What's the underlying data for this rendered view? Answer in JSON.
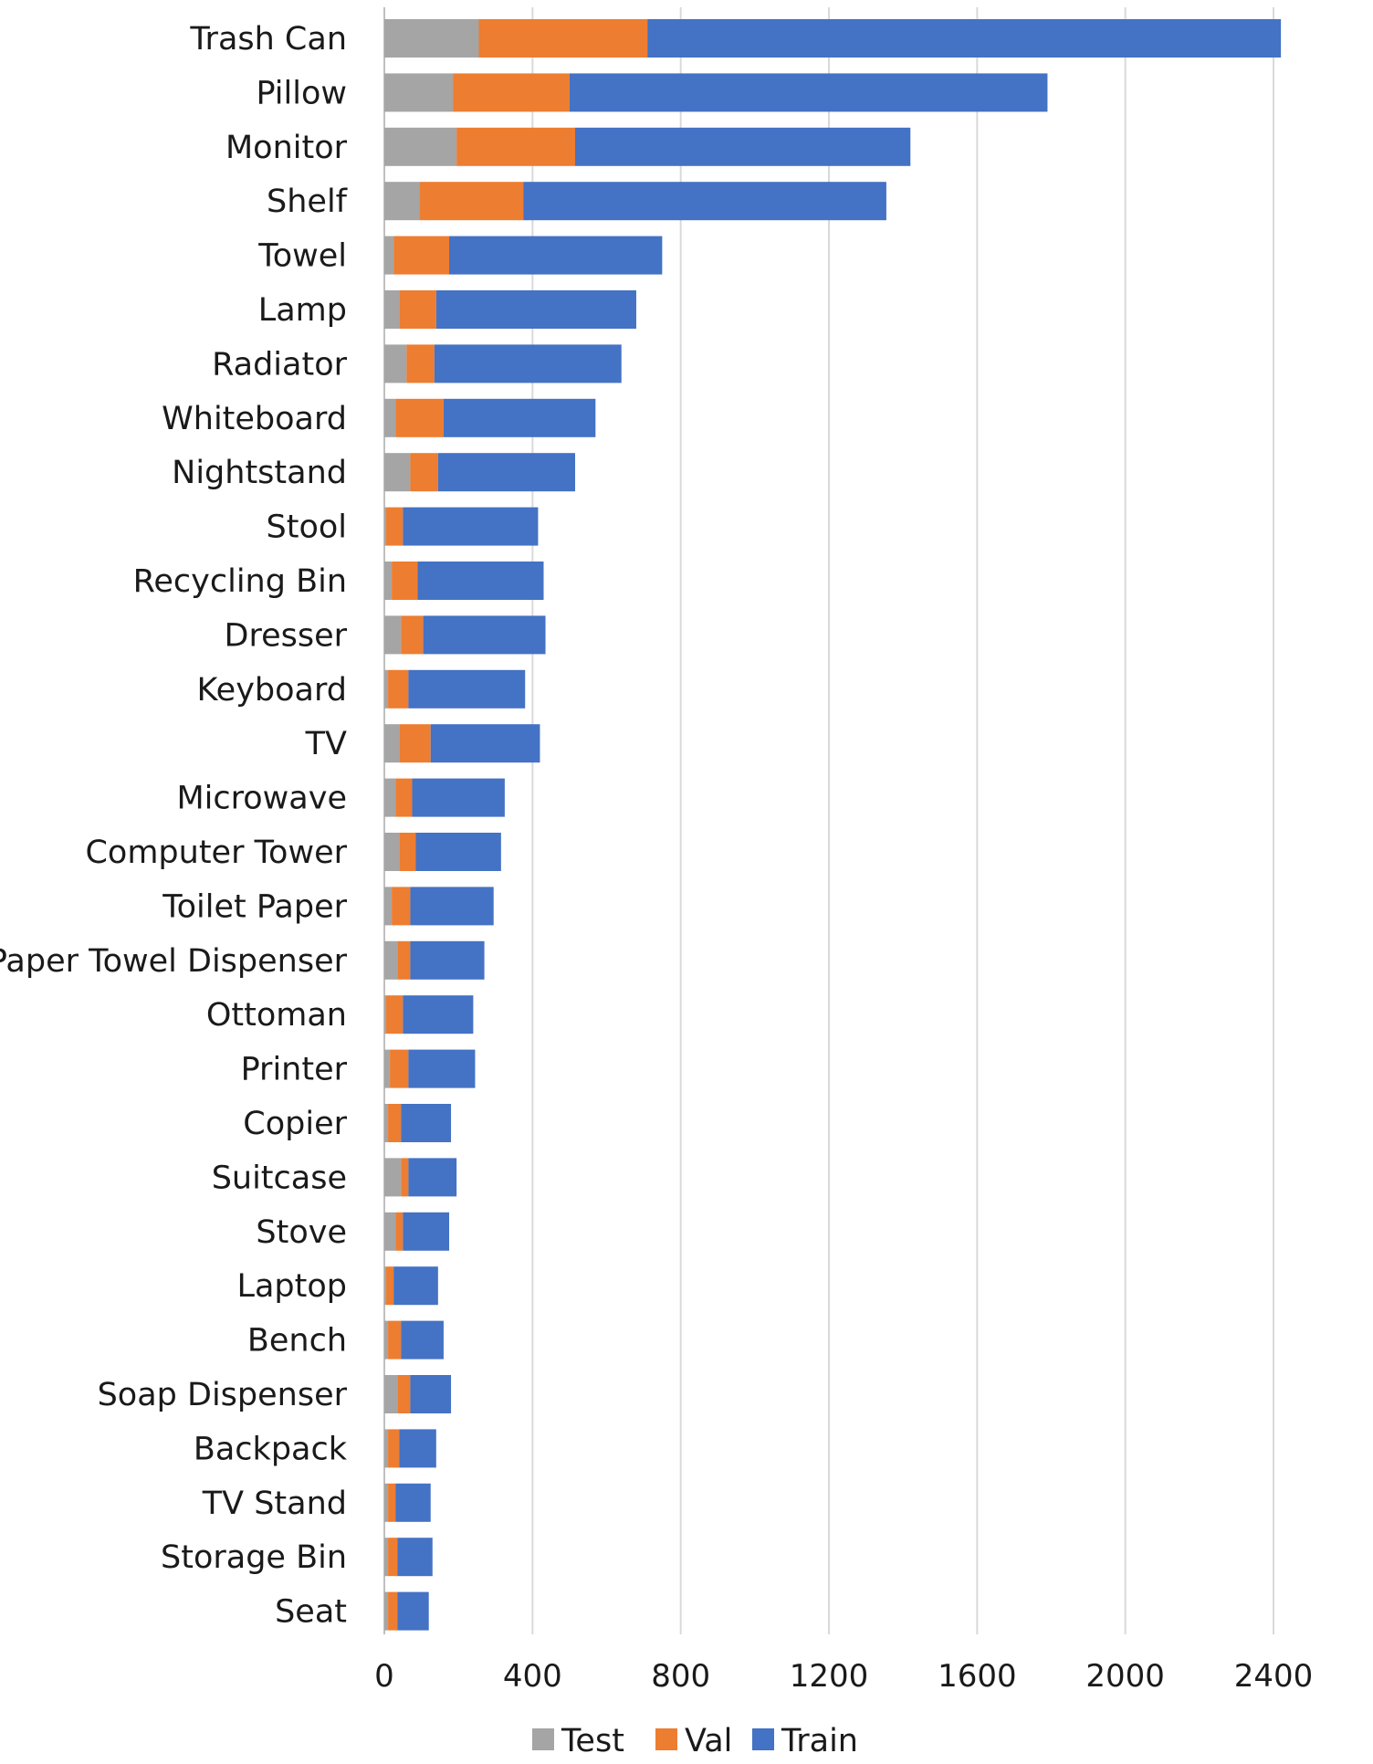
{
  "chart_data": {
    "type": "bar",
    "orientation": "horizontal",
    "stacked": true,
    "categories": [
      "Trash Can",
      "Pillow",
      "Monitor",
      "Shelf",
      "Towel",
      "Lamp",
      "Radiator",
      "Whiteboard",
      "Nightstand",
      "Stool",
      "Recycling Bin",
      "Dresser",
      "Keyboard",
      "TV",
      "Microwave",
      "Computer Tower",
      "Toilet Paper",
      "Paper Towel Dispenser",
      "Ottoman",
      "Printer",
      "Copier",
      "Suitcase",
      "Stove",
      "Laptop",
      "Bench",
      "Soap Dispenser",
      "Backpack",
      "TV Stand",
      "Storage Bin",
      "Seat"
    ],
    "series": [
      {
        "name": "Test",
        "color": "#a5a5a5",
        "values": [
          255,
          185,
          195,
          95,
          25,
          40,
          60,
          30,
          70,
          5,
          20,
          45,
          10,
          40,
          30,
          40,
          20,
          35,
          5,
          15,
          10,
          45,
          30,
          5,
          10,
          35,
          10,
          10,
          10,
          10
        ]
      },
      {
        "name": "Val",
        "color": "#ed7d31",
        "values": [
          455,
          315,
          320,
          280,
          150,
          100,
          75,
          130,
          75,
          45,
          70,
          60,
          55,
          85,
          45,
          45,
          50,
          35,
          45,
          50,
          35,
          20,
          20,
          20,
          35,
          35,
          30,
          20,
          25,
          25
        ]
      },
      {
        "name": "Train",
        "color": "#4472c4",
        "values": [
          1710,
          1290,
          905,
          980,
          575,
          540,
          505,
          410,
          370,
          365,
          340,
          330,
          315,
          295,
          250,
          230,
          225,
          200,
          190,
          180,
          135,
          130,
          125,
          120,
          115,
          110,
          100,
          95,
          95,
          85
        ]
      }
    ],
    "xlim": [
      0,
      2400
    ],
    "xticks": [
      "0",
      "400",
      "800",
      "1200",
      "1600",
      "2000",
      "2400"
    ],
    "xtick_values": [
      0,
      400,
      800,
      1200,
      1600,
      2000,
      2400
    ],
    "grid": true,
    "legend": "bottom",
    "title": "",
    "xlabel": "",
    "ylabel": ""
  }
}
